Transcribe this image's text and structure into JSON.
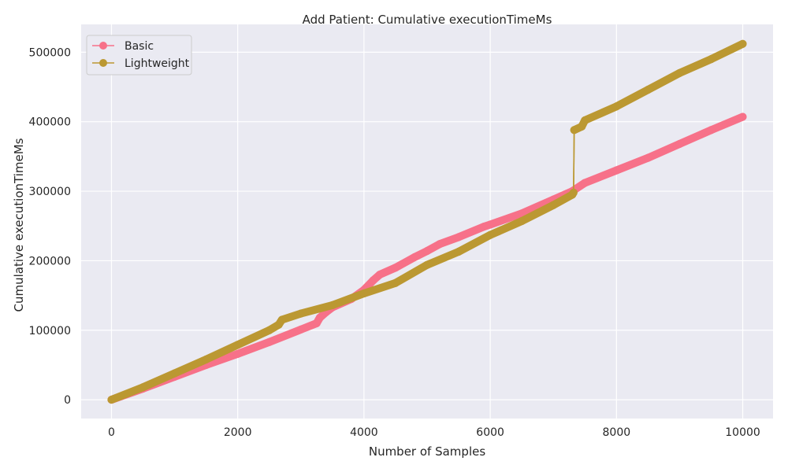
{
  "chart_data": {
    "type": "line",
    "title": "Add Patient: Cumulative executionTimeMs",
    "xlabel": "Number of Samples",
    "ylabel": "Cumulative executionTimeMs",
    "xlim": [
      -480,
      10480
    ],
    "ylim": [
      -27000,
      540000
    ],
    "xticks": [
      0,
      2000,
      4000,
      6000,
      8000,
      10000
    ],
    "yticks": [
      0,
      100000,
      200000,
      300000,
      400000,
      500000
    ],
    "grid": true,
    "legend_position": "top-left",
    "series": [
      {
        "name": "Basic",
        "color": "#f77189",
        "points": [
          [
            0,
            0
          ],
          [
            500,
            16000
          ],
          [
            1000,
            33000
          ],
          [
            1500,
            50000
          ],
          [
            2000,
            66000
          ],
          [
            2500,
            83000
          ],
          [
            3000,
            101000
          ],
          [
            3250,
            110000
          ],
          [
            3300,
            118000
          ],
          [
            3400,
            126000
          ],
          [
            3500,
            133000
          ],
          [
            3800,
            145000
          ],
          [
            4000,
            158000
          ],
          [
            4150,
            172000
          ],
          [
            4250,
            180000
          ],
          [
            4500,
            190000
          ],
          [
            4800,
            205000
          ],
          [
            5000,
            214000
          ],
          [
            5200,
            224000
          ],
          [
            5500,
            234000
          ],
          [
            5900,
            249000
          ],
          [
            6000,
            252000
          ],
          [
            6500,
            268000
          ],
          [
            7000,
            288000
          ],
          [
            7300,
            300000
          ],
          [
            7500,
            312000
          ],
          [
            8000,
            330000
          ],
          [
            8500,
            348000
          ],
          [
            9000,
            368000
          ],
          [
            9500,
            388000
          ],
          [
            10000,
            407000
          ]
        ]
      },
      {
        "name": "Lightweight",
        "color": "#bb9832",
        "points": [
          [
            0,
            0
          ],
          [
            500,
            18000
          ],
          [
            1000,
            38000
          ],
          [
            1500,
            58000
          ],
          [
            2000,
            79000
          ],
          [
            2500,
            100000
          ],
          [
            2650,
            108000
          ],
          [
            2700,
            115000
          ],
          [
            3000,
            124000
          ],
          [
            3500,
            136000
          ],
          [
            4000,
            153000
          ],
          [
            4500,
            168000
          ],
          [
            5000,
            194000
          ],
          [
            5500,
            213000
          ],
          [
            6000,
            237000
          ],
          [
            6500,
            257000
          ],
          [
            7000,
            280000
          ],
          [
            7300,
            295000
          ],
          [
            7320,
            298000
          ],
          [
            7330,
            388000
          ],
          [
            7450,
            393000
          ],
          [
            7500,
            402000
          ],
          [
            8000,
            422000
          ],
          [
            8500,
            446000
          ],
          [
            9000,
            470000
          ],
          [
            9500,
            490000
          ],
          [
            10000,
            512000
          ]
        ]
      }
    ]
  }
}
